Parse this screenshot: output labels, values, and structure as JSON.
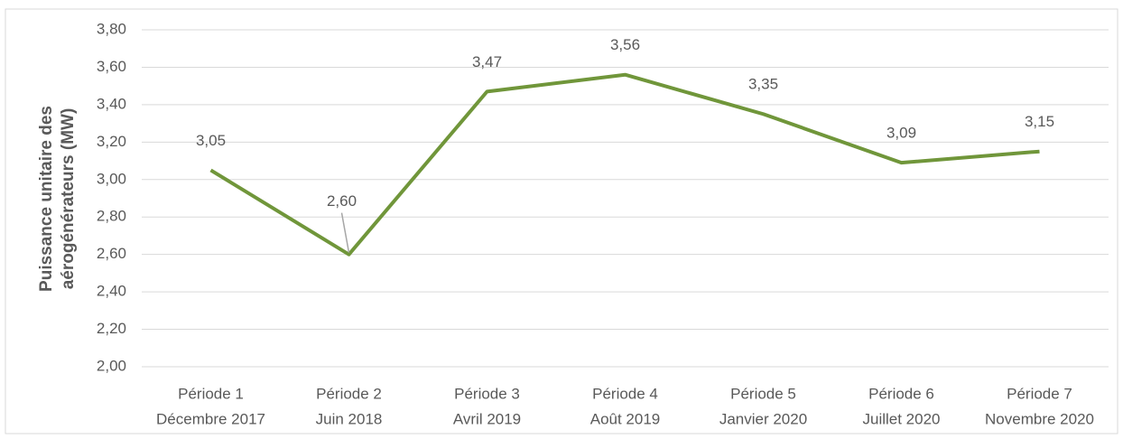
{
  "chart_data": {
    "type": "line",
    "y_label": [
      "Puissance unitaire des",
      "aérogénérateurs (MW)"
    ],
    "categories": [
      [
        "Période 1",
        "Décembre 2017"
      ],
      [
        "Période 2",
        "Juin 2018"
      ],
      [
        "Période 3",
        "Avril 2019"
      ],
      [
        "Période 4",
        "Août 2019"
      ],
      [
        "Période 5",
        "Janvier 2020"
      ],
      [
        "Période 6",
        "Juillet 2020"
      ],
      [
        "Période 7",
        "Novembre 2020"
      ]
    ],
    "values": [
      3.05,
      2.6,
      3.47,
      3.56,
      3.35,
      3.09,
      3.15
    ],
    "value_labels": [
      "3,05",
      "2,60",
      "3,47",
      "3,56",
      "3,35",
      "3,09",
      "3,15"
    ],
    "color": "#70963a",
    "ylim": [
      2.0,
      3.8
    ],
    "yticks": [
      {
        "value": 2.0,
        "label": "2,00"
      },
      {
        "value": 2.2,
        "label": "2,20"
      },
      {
        "value": 2.4,
        "label": "2,40"
      },
      {
        "value": 2.6,
        "label": "2,60"
      },
      {
        "value": 2.8,
        "label": "2,80"
      },
      {
        "value": 3.0,
        "label": "3,00"
      },
      {
        "value": 3.2,
        "label": "3,20"
      },
      {
        "value": 3.4,
        "label": "3,40"
      },
      {
        "value": 3.6,
        "label": "3,60"
      },
      {
        "value": 3.8,
        "label": "3,80"
      }
    ],
    "grid": true
  }
}
